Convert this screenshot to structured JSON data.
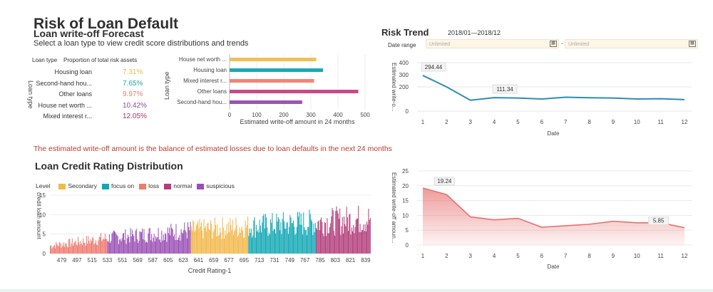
{
  "header": {
    "title": "Risk of Loan Default",
    "subtitle": "Loan write-off Forecast",
    "description": "Select a loan type to view credit score distributions and trends"
  },
  "loan_table": {
    "col_type": "Loan type",
    "col_prop": "Proportion of total risk assets",
    "axis_label": "Loan type",
    "rows": [
      {
        "label": "Housing loan",
        "value": "7.31%",
        "color": "#e8b84a"
      },
      {
        "label": "Second-hand hou...",
        "value": "7.65%",
        "color": "#2aa3a3"
      },
      {
        "label": "Other loans",
        "value": "9.97%",
        "color": "#e0806f"
      },
      {
        "label": "House net worth ...",
        "value": "10.42%",
        "color": "#8e4aa0"
      },
      {
        "label": "Mixed interest r...",
        "value": "12.05%",
        "color": "#b0306a"
      }
    ]
  },
  "writeoff_bar": {
    "ylabel": "Loan type",
    "xlabel": "Estimated write-off amount in 24 months",
    "ticks": [
      "0",
      "100",
      "200",
      "300",
      "400",
      "500"
    ]
  },
  "risk_trend": {
    "title": "Risk Trend",
    "range": "2018/01—2018/12",
    "date_range_label": "Date range",
    "start_placeholder": "Unlimited",
    "end_placeholder": "Unlimited",
    "separator": "-",
    "calendar_icon": "calendar-icon"
  },
  "note": "The estimated write-off amount is the balance of estimated losses due to loan defaults in the next 24 months",
  "distribution": {
    "title": "Loan Credit Rating Distribution",
    "legend_title": "Level",
    "legend": [
      {
        "name": "Secondary",
        "color": "#f2b84b"
      },
      {
        "name": "focus on",
        "color": "#12a8b5"
      },
      {
        "name": "loss",
        "color": "#ef7a6e"
      },
      {
        "name": "normal",
        "color": "#b23d7a"
      },
      {
        "name": "suspicious",
        "color": "#9a4fb5"
      }
    ],
    "ylabel": "credit loan amount",
    "xlabel": "Credit Rating-1"
  },
  "chart_data": [
    {
      "type": "bar",
      "orientation": "horizontal",
      "categories": [
        "House net worth ...",
        "Housing loan",
        "Mixed interest r...",
        "Other loans",
        "Second-hand hou..."
      ],
      "values": [
        320,
        345,
        312,
        475,
        268
      ],
      "colors": [
        "#f0bf5a",
        "#17aab8",
        "#ee8678",
        "#c44b86",
        "#9a55b5"
      ],
      "xlabel": "Estimated write-off amount in 24 months",
      "ylabel": "Loan type",
      "xlim": [
        0,
        500
      ],
      "xticks": [
        "0",
        "100",
        "200",
        "300",
        "400",
        "500"
      ]
    },
    {
      "type": "line",
      "x": [
        1,
        2,
        3,
        4,
        5,
        6,
        7,
        8,
        9,
        10,
        11,
        12
      ],
      "y": [
        294.44,
        200,
        90,
        111.34,
        108,
        100,
        115,
        110,
        108,
        100,
        102,
        95
      ],
      "xticks": [
        "1",
        "2",
        "3",
        "4",
        "5",
        "6",
        "7",
        "8",
        "9",
        "10",
        "11",
        "12"
      ],
      "yticks": [
        "0",
        "200",
        "300",
        "400"
      ],
      "ylim": [
        0,
        400
      ],
      "labels": [
        {
          "x": 1,
          "text": "294.44"
        },
        {
          "x": 4,
          "text": "111.34"
        }
      ],
      "xlabel": "Date",
      "ylabel": "Estimated write-o...",
      "color": "#2e8bb5"
    },
    {
      "type": "bar",
      "categories_ticks": [
        "479",
        "497",
        "515",
        "533",
        "551",
        "569",
        "587",
        "605",
        "623",
        "641",
        "659",
        "677",
        "695",
        "713",
        "731",
        "749",
        "767",
        "785",
        "803",
        "821",
        "839"
      ],
      "x_range": [
        465,
        845
      ],
      "segments": [
        {
          "level": "loss",
          "from": 465,
          "to": 533,
          "color": "#ef7a6e"
        },
        {
          "level": "suspicious",
          "from": 533,
          "to": 632,
          "color": "#9a4fb5"
        },
        {
          "level": "Secondary",
          "from": 632,
          "to": 700,
          "color": "#f2b84b"
        },
        {
          "level": "focus on",
          "from": 700,
          "to": 780,
          "color": "#12a8b5"
        },
        {
          "level": "normal",
          "from": 780,
          "to": 845,
          "color": "#b23d7a"
        }
      ],
      "value_trend": [
        [
          465,
          2
        ],
        [
          533,
          4
        ],
        [
          632,
          6
        ],
        [
          700,
          7
        ],
        [
          780,
          8
        ],
        [
          845,
          9
        ]
      ],
      "yticks": [
        "0",
        "5",
        "10",
        "15"
      ],
      "ylim": [
        0,
        15
      ],
      "ylabel": "credit loan amount",
      "xlabel": "Credit Rating-1"
    },
    {
      "type": "area",
      "x": [
        1,
        2,
        3,
        4,
        5,
        6,
        7,
        8,
        9,
        10,
        11,
        12
      ],
      "y": [
        19.24,
        17,
        9.5,
        8.5,
        9,
        6,
        6.5,
        7,
        8,
        7.5,
        7.5,
        5.85
      ],
      "xticks": [
        "1",
        "2",
        "3",
        "4",
        "5",
        "6",
        "7",
        "8",
        "9",
        "10",
        "11",
        "12"
      ],
      "yticks": [
        "0",
        "5",
        "10",
        "15",
        "20",
        "25"
      ],
      "ylim": [
        0,
        25
      ],
      "labels": [
        {
          "x": 2,
          "y": 19.24,
          "text": "19.24"
        },
        {
          "x": 11,
          "y": 5.85,
          "text": "5.85"
        }
      ],
      "xlabel": "Date",
      "ylabel": "Estimated write-off amoun...",
      "color": "#e87070"
    }
  ]
}
